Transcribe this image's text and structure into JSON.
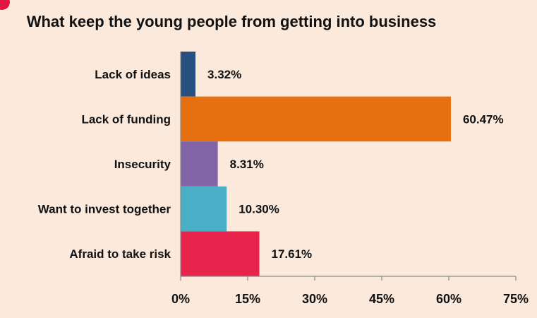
{
  "chart_data": {
    "type": "bar",
    "orientation": "horizontal",
    "title": "What keep the young people from getting into business",
    "categories": [
      "Lack of ideas",
      "Lack of funding",
      "Insecurity",
      "Want to invest together",
      "Afraid to take risk"
    ],
    "values": [
      3.32,
      60.47,
      8.31,
      10.3,
      17.61
    ],
    "value_labels": [
      "3.32%",
      "60.47%",
      "8.31%",
      "10.30%",
      "17.61%"
    ],
    "colors": [
      "#26507f",
      "#e6700f",
      "#8165a6",
      "#4aaec6",
      "#e8244c"
    ],
    "xlim": [
      0,
      75
    ],
    "x_ticks": [
      0,
      15,
      30,
      45,
      60,
      75
    ],
    "x_tick_labels": [
      "0%",
      "15%",
      "30%",
      "45%",
      "60%",
      "75%"
    ],
    "xlabel": "",
    "ylabel": "",
    "grid": false,
    "legend": "none"
  }
}
